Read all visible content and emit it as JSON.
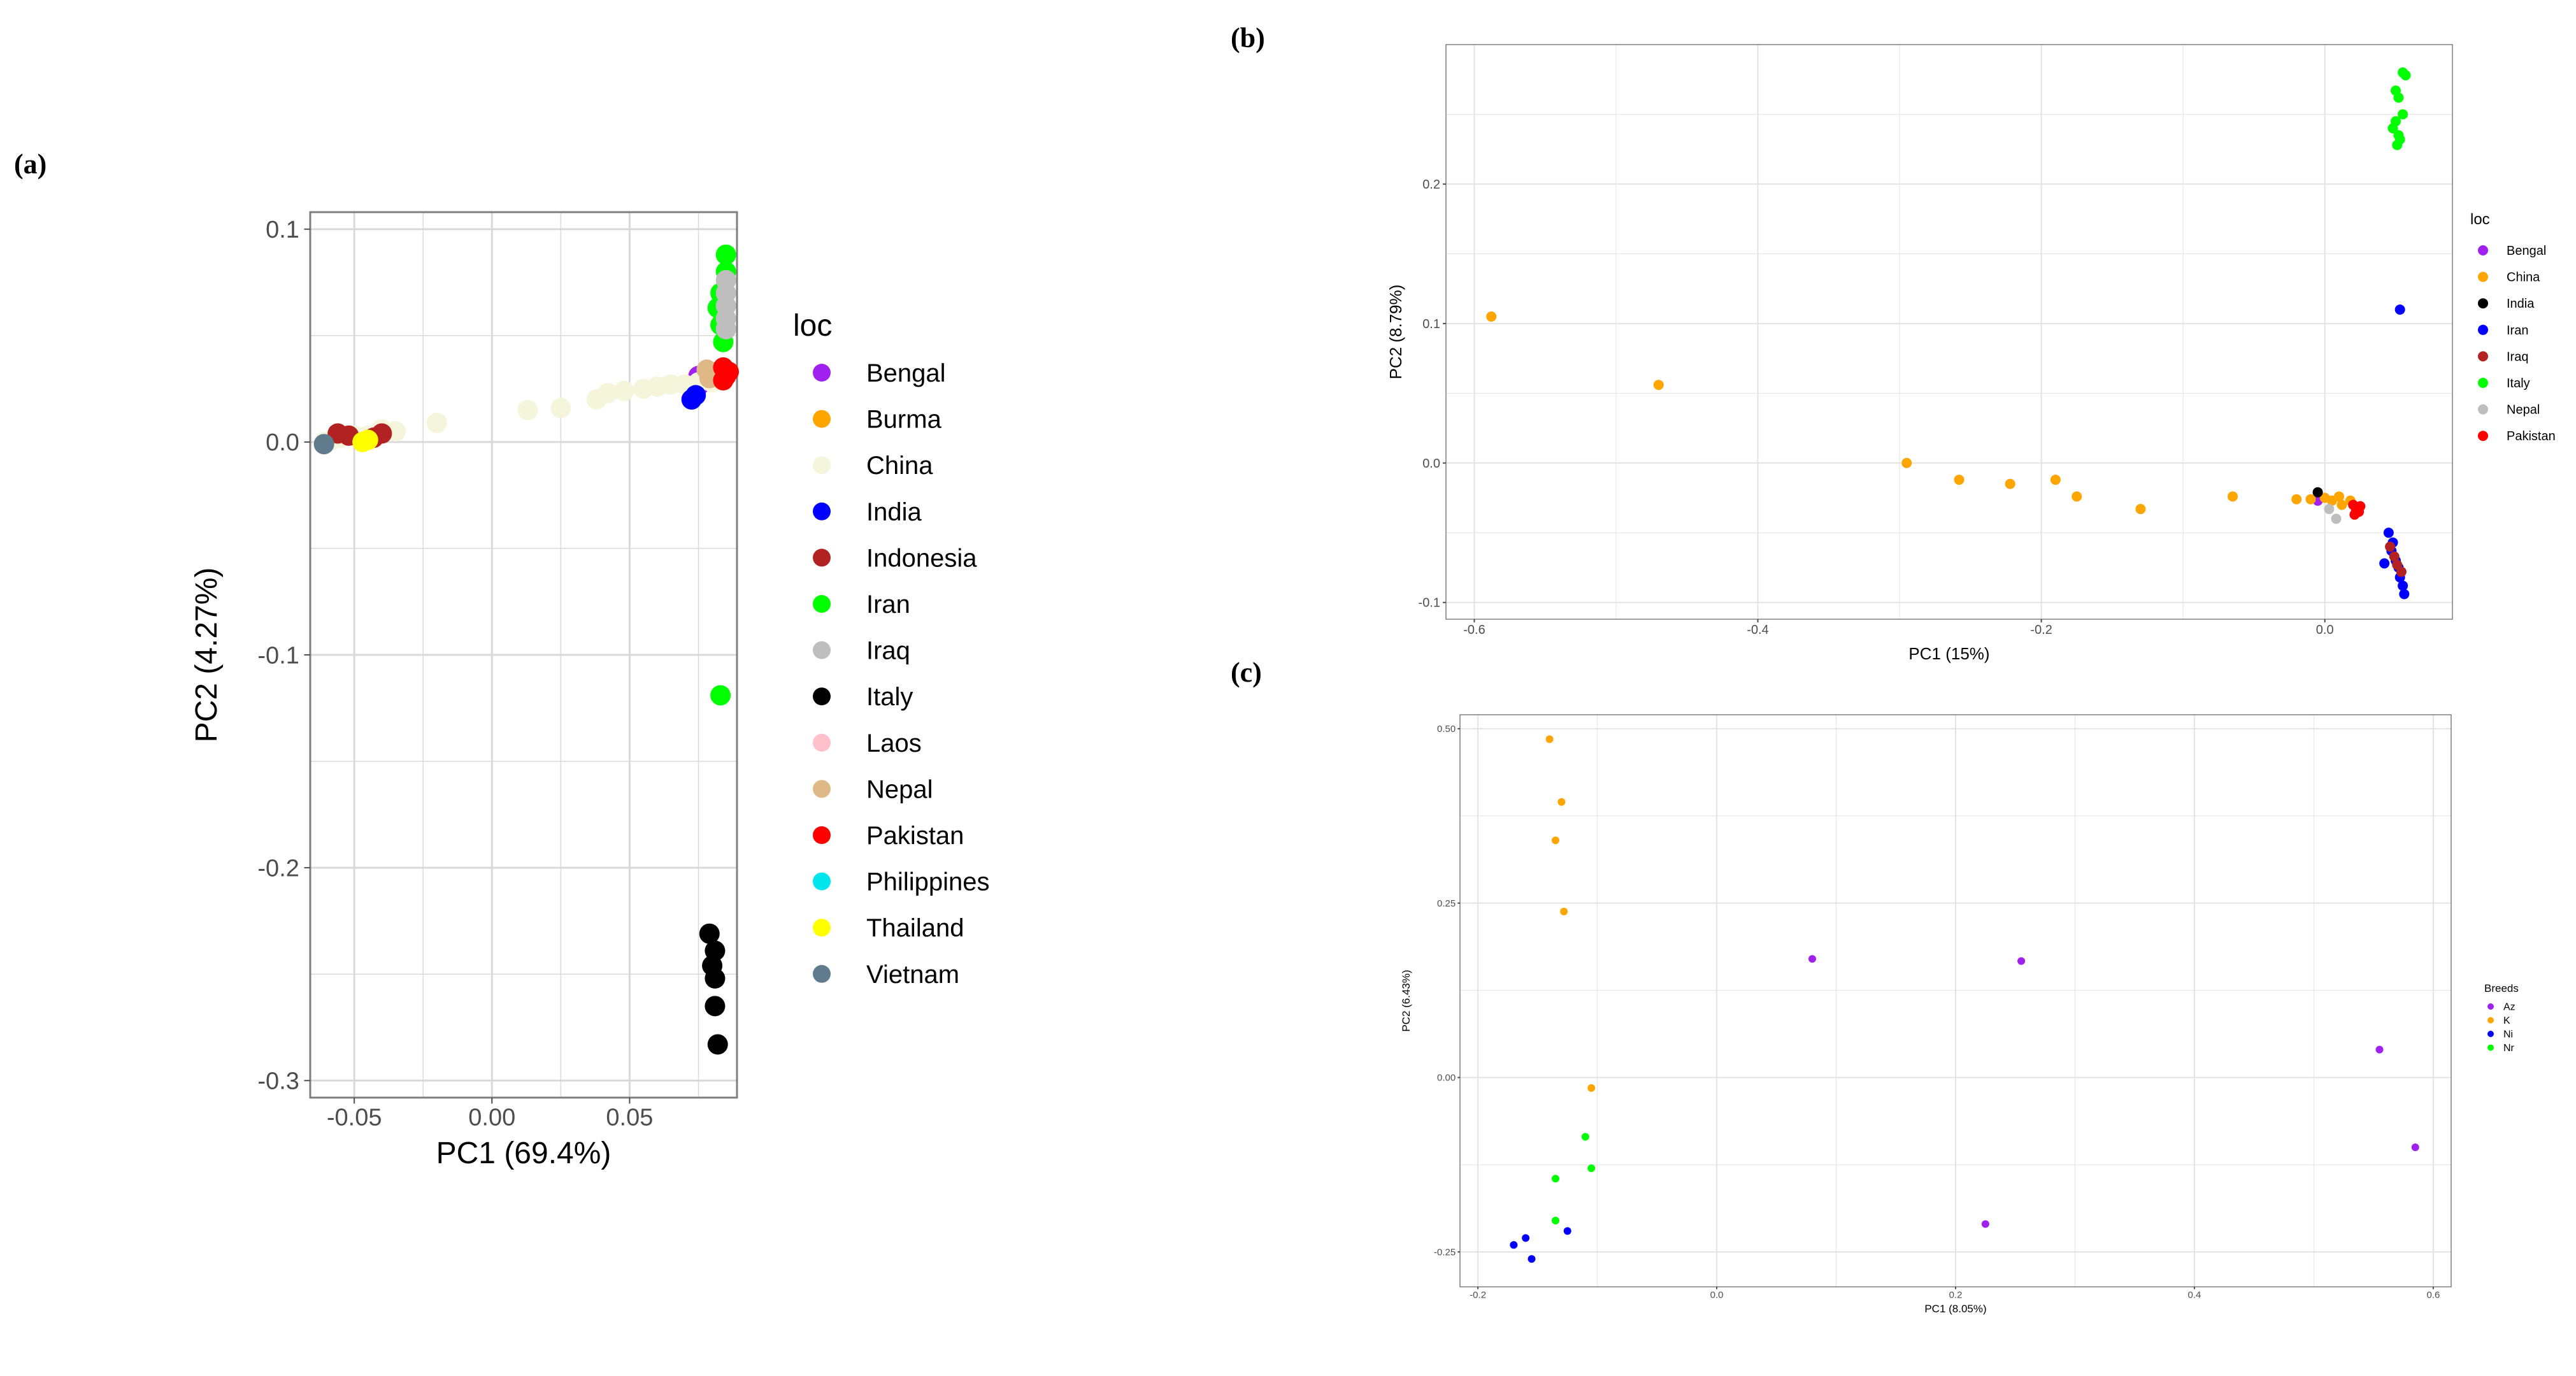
{
  "panels": {
    "a": "(a)",
    "b": "(b)",
    "c": "(c)"
  },
  "chart_data": [
    {
      "id": "a",
      "type": "scatter",
      "xlabel": "PC1 (69.4%)",
      "ylabel": "PC2 (4.27%)",
      "xlim": [
        -0.066,
        0.089
      ],
      "ylim": [
        -0.308,
        0.108
      ],
      "xticks": [
        -0.05,
        0.0,
        0.05
      ],
      "xtick_labels": [
        "-0.05",
        "0.00",
        "0.05"
      ],
      "yticks": [
        0.1,
        0.0,
        -0.1,
        -0.2,
        -0.3
      ],
      "ytick_labels": [
        "0.1",
        "0.0",
        "-0.1",
        "-0.2",
        "-0.3"
      ],
      "xminor": [
        -0.025,
        0.025,
        0.075
      ],
      "yminor": [
        0.05,
        -0.05,
        -0.15,
        -0.25
      ],
      "legend_title": "loc",
      "series": [
        {
          "name": "Bengal",
          "color": "#a020f0",
          "points": [
            [
              0.0745,
              0.029
            ],
            [
              0.075,
              0.031
            ],
            [
              0.0755,
              0.027
            ]
          ]
        },
        {
          "name": "Burma",
          "color": "#ffa500",
          "points": []
        },
        {
          "name": "China",
          "color": "#f5f5dc",
          "points": [
            [
              -0.061,
              0.0
            ],
            [
              -0.058,
              0.001
            ],
            [
              -0.055,
              0.002
            ],
            [
              -0.05,
              0.003
            ],
            [
              -0.045,
              0.003
            ],
            [
              -0.04,
              0.006
            ],
            [
              -0.035,
              0.005
            ],
            [
              -0.02,
              0.009
            ],
            [
              0.013,
              0.015
            ],
            [
              0.025,
              0.016
            ],
            [
              0.038,
              0.02
            ],
            [
              0.042,
              0.023
            ],
            [
              0.048,
              0.024
            ],
            [
              0.055,
              0.025
            ],
            [
              0.06,
              0.026
            ],
            [
              0.065,
              0.027
            ],
            [
              0.07,
              0.027
            ],
            [
              0.075,
              0.028
            ],
            [
              0.08,
              0.028
            ]
          ]
        },
        {
          "name": "India",
          "color": "#0000ff",
          "points": [
            [
              0.0725,
              0.02
            ],
            [
              0.074,
              0.022
            ]
          ]
        },
        {
          "name": "Indonesia",
          "color": "#b22222",
          "points": [
            [
              -0.056,
              0.004
            ],
            [
              -0.052,
              0.003
            ],
            [
              -0.043,
              0.002
            ],
            [
              -0.04,
              0.004
            ],
            [
              0.082,
              0.033
            ]
          ]
        },
        {
          "name": "Iran",
          "color": "#00ff00",
          "points": [
            [
              0.085,
              0.088
            ],
            [
              0.085,
              0.08
            ],
            [
              0.083,
              0.07
            ],
            [
              0.082,
              0.063
            ],
            [
              0.083,
              0.055
            ],
            [
              0.084,
              0.047
            ],
            [
              0.083,
              -0.119
            ]
          ]
        },
        {
          "name": "Iraq",
          "color": "#bebebe",
          "points": [
            [
              0.085,
              0.076
            ],
            [
              0.085,
              0.07
            ],
            [
              0.085,
              0.064
            ],
            [
              0.085,
              0.058
            ],
            [
              0.085,
              0.053
            ]
          ]
        },
        {
          "name": "Italy",
          "color": "#000000",
          "points": [
            [
              0.079,
              -0.231
            ],
            [
              0.081,
              -0.239
            ],
            [
              0.08,
              -0.246
            ],
            [
              0.081,
              -0.252
            ],
            [
              0.081,
              -0.265
            ],
            [
              0.082,
              -0.283
            ]
          ]
        },
        {
          "name": "Laos",
          "color": "#ffc0cb",
          "points": []
        },
        {
          "name": "Nepal",
          "color": "#deb887",
          "points": [
            [
              0.078,
              0.034
            ],
            [
              0.079,
              0.03
            ]
          ]
        },
        {
          "name": "Pakistan",
          "color": "#ff0000",
          "points": [
            [
              0.084,
              0.029
            ],
            [
              0.085,
              0.031
            ],
            [
              0.084,
              0.035
            ],
            [
              0.086,
              0.033
            ]
          ]
        },
        {
          "name": "Philippines",
          "color": "#00e5ee",
          "points": []
        },
        {
          "name": "Thailand",
          "color": "#ffff00",
          "points": [
            [
              -0.047,
              0.0
            ],
            [
              -0.045,
              0.001
            ]
          ]
        },
        {
          "name": "Vietnam",
          "color": "#607b8b",
          "points": [
            [
              -0.061,
              -0.001
            ]
          ]
        }
      ]
    },
    {
      "id": "b",
      "type": "scatter",
      "xlabel": "PC1 (15%)",
      "ylabel": "PC2 (8.79%)",
      "xlim": [
        -0.62,
        0.09
      ],
      "ylim": [
        -0.112,
        0.3
      ],
      "xticks": [
        -0.6,
        -0.4,
        -0.2,
        0.0
      ],
      "xtick_labels": [
        "-0.6",
        "-0.4",
        "-0.2",
        "0.0"
      ],
      "yticks": [
        0.2,
        0.1,
        0.0,
        -0.1
      ],
      "ytick_labels": [
        "0.2",
        "0.1",
        "0.0",
        "-0.1"
      ],
      "xminor": [
        -0.5,
        -0.3,
        -0.1
      ],
      "yminor": [
        0.25,
        0.15,
        0.05,
        -0.05
      ],
      "legend_title": "loc",
      "series": [
        {
          "name": "Bengal",
          "color": "#a020f0",
          "points": [
            [
              -0.005,
              -0.027
            ]
          ]
        },
        {
          "name": "China",
          "color": "#ffa500",
          "points": [
            [
              -0.588,
              0.105
            ],
            [
              -0.47,
              0.056
            ],
            [
              -0.295,
              0.0
            ],
            [
              -0.258,
              -0.012
            ],
            [
              -0.222,
              -0.015
            ],
            [
              -0.19,
              -0.012
            ],
            [
              -0.175,
              -0.024
            ],
            [
              -0.13,
              -0.033
            ],
            [
              -0.065,
              -0.024
            ],
            [
              -0.02,
              -0.026
            ],
            [
              -0.01,
              -0.026
            ],
            [
              0.0,
              -0.025
            ],
            [
              0.005,
              -0.027
            ],
            [
              0.01,
              -0.024
            ],
            [
              0.012,
              -0.03
            ],
            [
              0.018,
              -0.027
            ]
          ]
        },
        {
          "name": "India",
          "color": "#000000",
          "points": [
            [
              -0.005,
              -0.021
            ]
          ]
        },
        {
          "name": "Iran",
          "color": "#0000ff",
          "points": [
            [
              0.053,
              0.11
            ],
            [
              0.045,
              -0.05
            ],
            [
              0.048,
              -0.057
            ],
            [
              0.047,
              -0.063
            ],
            [
              0.05,
              -0.07
            ],
            [
              0.052,
              -0.075
            ],
            [
              0.053,
              -0.082
            ],
            [
              0.055,
              -0.088
            ],
            [
              0.056,
              -0.094
            ],
            [
              0.042,
              -0.072
            ]
          ]
        },
        {
          "name": "Iraq",
          "color": "#b22222",
          "points": [
            [
              0.046,
              -0.06
            ],
            [
              0.049,
              -0.067
            ],
            [
              0.051,
              -0.073
            ],
            [
              0.054,
              -0.078
            ]
          ]
        },
        {
          "name": "Italy",
          "color": "#00ff00",
          "points": [
            [
              0.055,
              0.28
            ],
            [
              0.057,
              0.278
            ],
            [
              0.05,
              0.267
            ],
            [
              0.052,
              0.262
            ],
            [
              0.055,
              0.25
            ],
            [
              0.05,
              0.245
            ],
            [
              0.048,
              0.24
            ],
            [
              0.052,
              0.235
            ],
            [
              0.051,
              0.228
            ],
            [
              0.053,
              0.232
            ]
          ]
        },
        {
          "name": "Nepal",
          "color": "#bebebe",
          "points": [
            [
              0.008,
              -0.04
            ],
            [
              0.003,
              -0.033
            ]
          ]
        },
        {
          "name": "Pakistan",
          "color": "#ff0000",
          "points": [
            [
              0.02,
              -0.03
            ],
            [
              0.022,
              -0.033
            ],
            [
              0.024,
              -0.035
            ],
            [
              0.021,
              -0.037
            ],
            [
              0.025,
              -0.031
            ]
          ]
        }
      ]
    },
    {
      "id": "c",
      "type": "scatter",
      "xlabel": "PC1 (8.05%)",
      "ylabel": "PC2 (6.43%)",
      "xlim": [
        -0.215,
        0.615
      ],
      "ylim": [
        -0.3,
        0.52
      ],
      "xticks": [
        -0.2,
        0.0,
        0.2,
        0.4,
        0.6
      ],
      "xtick_labels": [
        "-0.2",
        "0.0",
        "0.2",
        "0.4",
        "0.6"
      ],
      "yticks": [
        0.5,
        0.25,
        0.0,
        -0.25
      ],
      "ytick_labels": [
        "0.50",
        "0.25",
        "0.00",
        "-0.25"
      ],
      "xminor": [
        -0.1,
        0.1,
        0.3,
        0.5
      ],
      "yminor": [
        0.375,
        0.125,
        -0.125
      ],
      "legend_title": "Breeds",
      "series": [
        {
          "name": "Az",
          "color": "#a020f0",
          "points": [
            [
              0.08,
              0.17
            ],
            [
              0.255,
              0.167
            ],
            [
              0.225,
              -0.21
            ],
            [
              0.555,
              0.04
            ],
            [
              0.585,
              -0.1
            ]
          ]
        },
        {
          "name": "K",
          "color": "#ffa500",
          "points": [
            [
              -0.14,
              0.485
            ],
            [
              -0.13,
              0.395
            ],
            [
              -0.135,
              0.34
            ],
            [
              -0.128,
              0.238
            ],
            [
              -0.105,
              -0.015
            ]
          ]
        },
        {
          "name": "Ni",
          "color": "#0000ff",
          "points": [
            [
              -0.16,
              -0.23
            ],
            [
              -0.17,
              -0.24
            ],
            [
              -0.155,
              -0.26
            ],
            [
              -0.125,
              -0.22
            ]
          ]
        },
        {
          "name": "Nr",
          "color": "#00ff00",
          "points": [
            [
              -0.11,
              -0.085
            ],
            [
              -0.135,
              -0.145
            ],
            [
              -0.105,
              -0.13
            ],
            [
              -0.135,
              -0.205
            ]
          ]
        }
      ]
    }
  ]
}
